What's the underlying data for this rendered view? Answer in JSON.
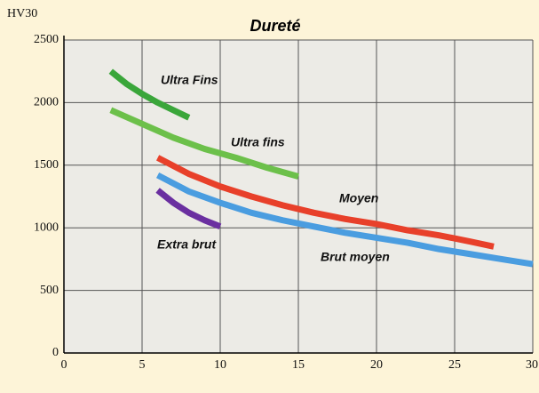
{
  "chart_data": {
    "type": "line",
    "title": "Dureté",
    "y_label": "HV30",
    "xlim": [
      0,
      30
    ],
    "ylim": [
      0,
      2500
    ],
    "xticks": [
      0,
      5,
      10,
      15,
      20,
      25,
      30
    ],
    "yticks": [
      0,
      500,
      1000,
      1500,
      2000,
      2500
    ],
    "grid": true,
    "series": [
      {
        "name": "Ultra Fins",
        "color": "#3aa63a",
        "x": [
          3,
          4,
          5,
          6,
          7,
          8
        ],
        "values": [
          2250,
          2150,
          2070,
          2000,
          1940,
          1880
        ]
      },
      {
        "name": "Ultra fins",
        "color": "#6cc04a",
        "x": [
          3,
          5,
          7,
          9,
          11,
          13,
          15
        ],
        "values": [
          1940,
          1830,
          1720,
          1630,
          1560,
          1480,
          1410
        ]
      },
      {
        "name": "Moyen",
        "color": "#e8402a",
        "x": [
          6,
          8,
          10,
          12,
          14,
          16,
          18,
          20,
          22,
          24,
          26,
          27.5
        ],
        "values": [
          1560,
          1430,
          1330,
          1250,
          1180,
          1120,
          1070,
          1030,
          980,
          940,
          890,
          850
        ]
      },
      {
        "name": "Brut moyen",
        "color": "#4a9de0",
        "x": [
          6,
          8,
          10,
          12,
          14,
          16,
          18,
          20,
          22,
          24,
          26,
          28,
          30
        ],
        "values": [
          1420,
          1290,
          1200,
          1120,
          1060,
          1010,
          960,
          920,
          880,
          830,
          790,
          750,
          710
        ]
      },
      {
        "name": "Extra brut",
        "color": "#6a2fa0",
        "x": [
          6,
          7,
          8,
          9,
          10
        ],
        "values": [
          1300,
          1200,
          1120,
          1060,
          1010
        ]
      }
    ]
  }
}
